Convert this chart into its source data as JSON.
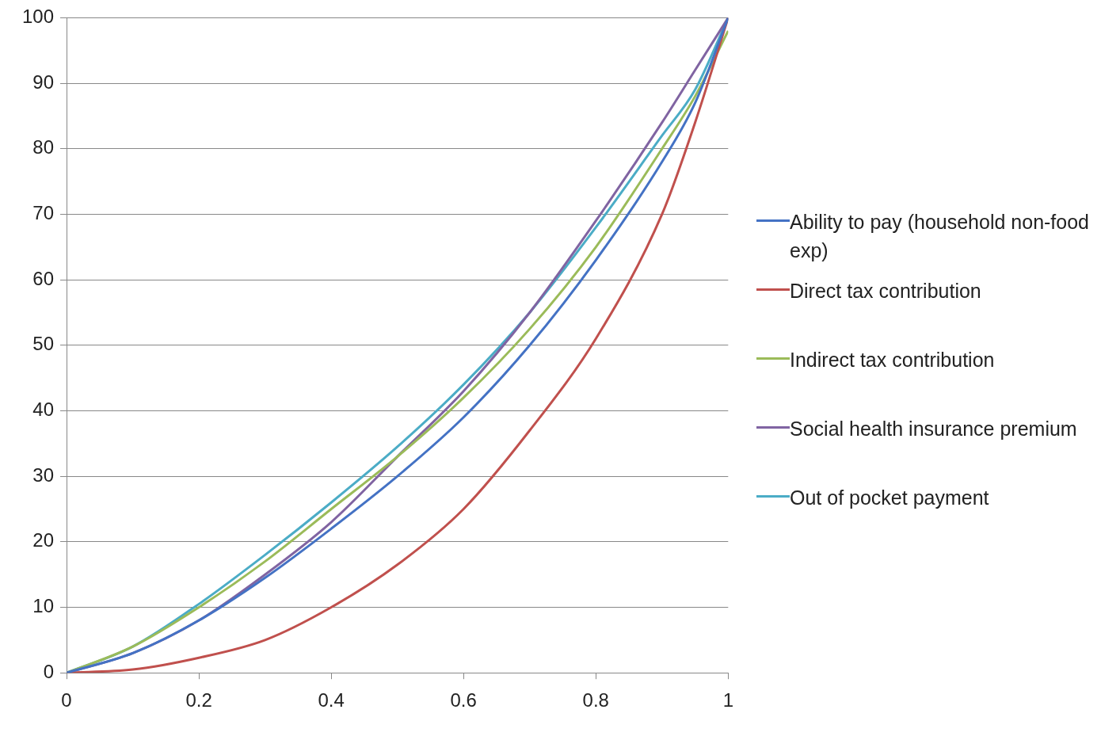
{
  "chart_data": {
    "type": "line",
    "x": [
      0,
      0.1,
      0.2,
      0.3,
      0.4,
      0.5,
      0.6,
      0.7,
      0.8,
      0.9,
      0.95,
      1
    ],
    "series": [
      {
        "name": "Ability to pay (household  non-food exp)",
        "color": "#4472c4",
        "values": [
          0,
          3,
          8,
          14.5,
          22,
          30,
          39,
          50,
          63,
          78,
          87,
          100
        ]
      },
      {
        "name": "Direct tax contribution",
        "color": "#c0504d",
        "values": [
          0,
          0.5,
          2.3,
          5,
          10,
          16.5,
          25,
          37,
          51,
          70,
          84,
          100
        ]
      },
      {
        "name": "Indirect tax contribution",
        "color": "#9bbb59",
        "values": [
          0,
          4,
          10,
          17,
          25,
          33,
          42,
          52.5,
          65,
          80,
          88,
          98
        ]
      },
      {
        "name": "Social health insurance premium",
        "color": "#8064a2",
        "values": [
          0,
          3,
          8,
          15,
          23,
          33,
          43,
          55,
          69,
          84,
          92,
          100
        ]
      },
      {
        "name": "Out of pocket payment",
        "color": "#4bacc6",
        "values": [
          0,
          4,
          10.5,
          18,
          26,
          34.5,
          44,
          55,
          68,
          82,
          89,
          100
        ]
      }
    ],
    "xlim": [
      0,
      1
    ],
    "xticks": [
      0,
      0.2,
      0.4,
      0.6,
      0.8,
      1
    ],
    "ylim": [
      0,
      100
    ],
    "yticks": [
      0,
      10,
      20,
      30,
      40,
      50,
      60,
      70,
      80,
      90,
      100
    ],
    "grid": "y",
    "legend": "right",
    "marker": "none",
    "line_style": "solid"
  }
}
